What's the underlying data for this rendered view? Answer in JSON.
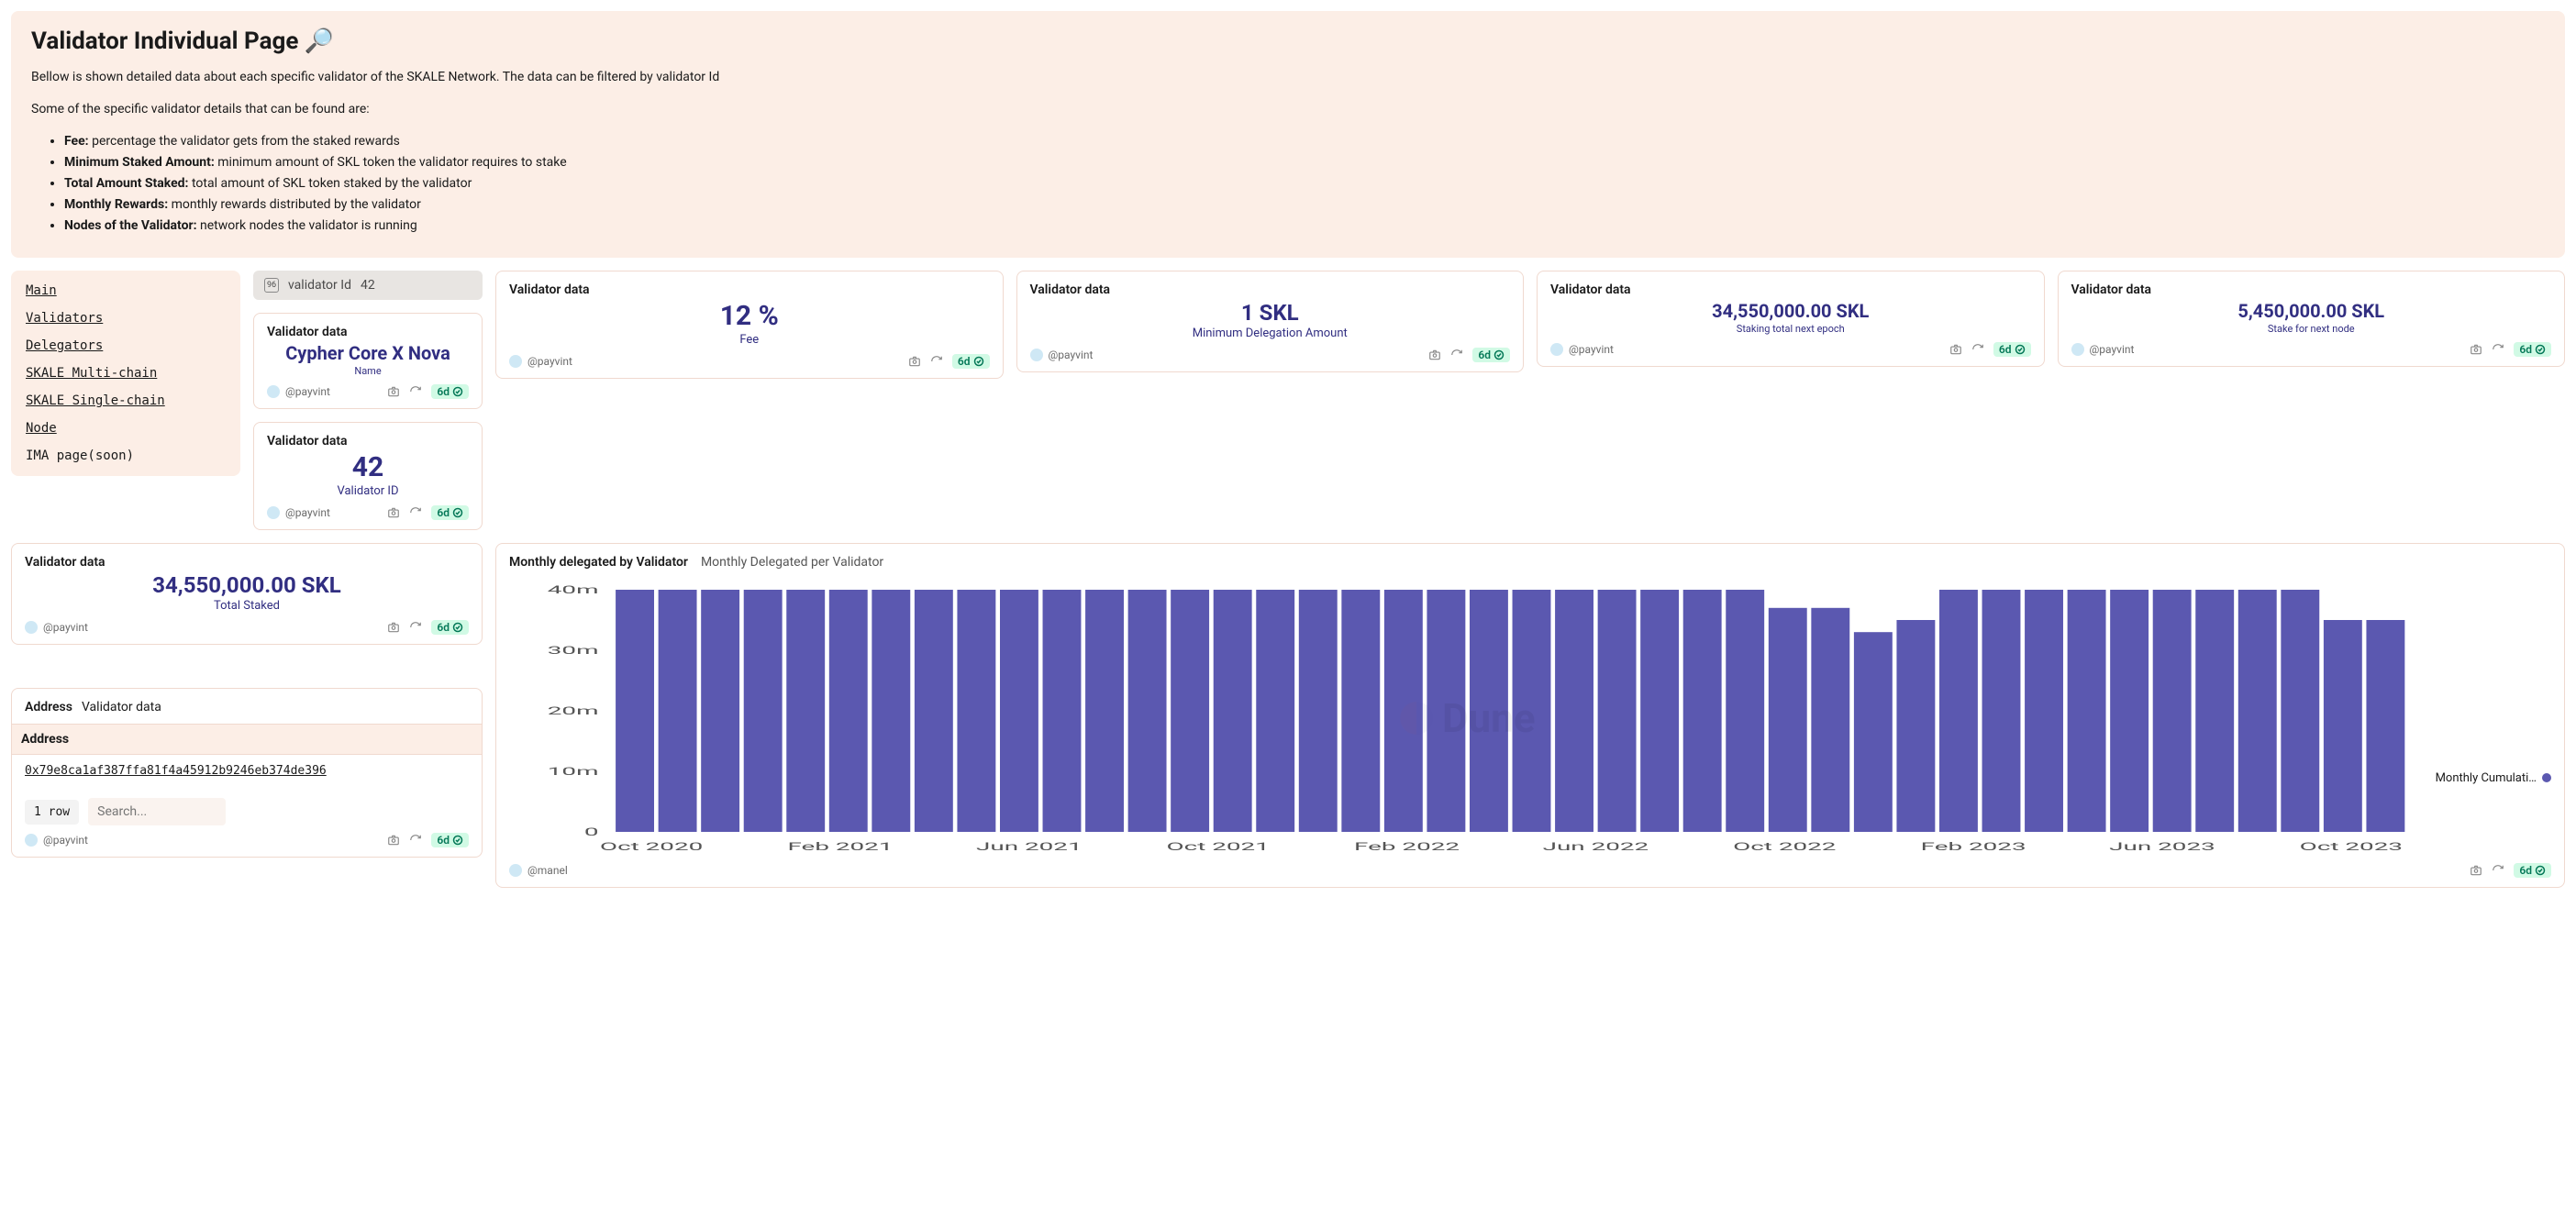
{
  "header": {
    "title": "Validator Individual Page 🔎",
    "intro": "Bellow is shown detailed data about each specific validator of the SKALE Network. The data can be filtered by validator Id",
    "intro2": "Some of the specific validator details that can be found are:",
    "bullets": [
      {
        "label": "Fee:",
        "text": " percentage the validator gets from the staked rewards"
      },
      {
        "label": "Minimum Staked Amount:",
        "text": " minimum amount of SKL token the validator requires to stake"
      },
      {
        "label": "Total Amount Staked:",
        "text": " total amount of SKL token staked by the validator"
      },
      {
        "label": "Monthly Rewards:",
        "text": " monthly rewards distributed by the validator"
      },
      {
        "label": "Nodes of the Validator:",
        "text": " network nodes the validator is running"
      }
    ]
  },
  "sidebar": {
    "items": [
      {
        "label": "Main",
        "link": true
      },
      {
        "label": "Validators",
        "link": true
      },
      {
        "label": "Delegators",
        "link": true
      },
      {
        "label": "SKALE Multi-chain",
        "link": true
      },
      {
        "label": "SKALE Single-chain",
        "link": true
      },
      {
        "label": "Node",
        "link": true
      },
      {
        "label": "IMA page(soon)",
        "link": false
      }
    ]
  },
  "filter": {
    "label": "validator Id",
    "value": "42"
  },
  "cards": {
    "name": {
      "title": "Validator data",
      "value": "Cypher Core X Nova",
      "sub": "Name",
      "author": "@payvint",
      "age": "6d"
    },
    "fee": {
      "title": "Validator data",
      "value": "12 %",
      "sub": "Fee",
      "author": "@payvint",
      "age": "6d"
    },
    "minDel": {
      "title": "Validator data",
      "value": "1 SKL",
      "sub": "Minimum Delegation Amount",
      "author": "@payvint",
      "age": "6d"
    },
    "stakeNext": {
      "title": "Validator data",
      "value": "34,550,000.00 SKL",
      "sub": "Staking total next epoch",
      "author": "@payvint",
      "age": "6d"
    },
    "stakeNextNode": {
      "title": "Validator data",
      "value": "5,450,000.00 SKL",
      "sub": "Stake for next node",
      "author": "@payvint",
      "age": "6d"
    },
    "vid": {
      "title": "Validator data",
      "value": "42",
      "sub": "Validator ID",
      "author": "@payvint",
      "age": "6d"
    },
    "totalStaked": {
      "title": "Validator data",
      "value": "34,550,000.00 SKL",
      "sub": "Total Staked",
      "author": "@payvint",
      "age": "6d"
    },
    "address": {
      "title": "Address",
      "sub": "Validator data",
      "col": "Address",
      "value": "0x79e8ca1af387ffa81f4a45912b9246eb374de396",
      "rowcount": "1 row",
      "placeholder": "Search...",
      "author": "@payvint",
      "age": "6d"
    }
  },
  "chart": {
    "title": "Monthly delegated by Validator",
    "subtitle": "Monthly Delegated per Validator",
    "author": "@manel",
    "age": "6d",
    "legend": "Monthly Cumulati…",
    "type": "bar",
    "ylim": [
      0,
      40000000
    ],
    "yticks": [
      0,
      10000000,
      20000000,
      30000000,
      40000000
    ],
    "ytick_labels": [
      "0",
      "10m",
      "20m",
      "30m",
      "40m"
    ],
    "xtick_labels": [
      "Oct 2020",
      "Feb 2021",
      "Jun 2021",
      "Oct 2021",
      "Feb 2022",
      "Jun 2022",
      "Oct 2022",
      "Feb 2023",
      "Jun 2023",
      "Oct 2023"
    ],
    "bar_color": "#5b58b0",
    "background": "#ffffff",
    "bars": [
      40,
      40,
      40,
      40,
      40,
      40,
      40,
      40,
      40,
      40,
      40,
      40,
      40,
      40,
      40,
      40,
      40,
      40,
      40,
      40,
      40,
      40,
      40,
      40,
      40,
      40,
      40,
      37,
      37,
      33,
      35,
      40,
      40,
      40,
      40,
      40,
      40,
      40,
      40,
      40,
      35,
      35
    ],
    "bar_unit": "millions"
  }
}
